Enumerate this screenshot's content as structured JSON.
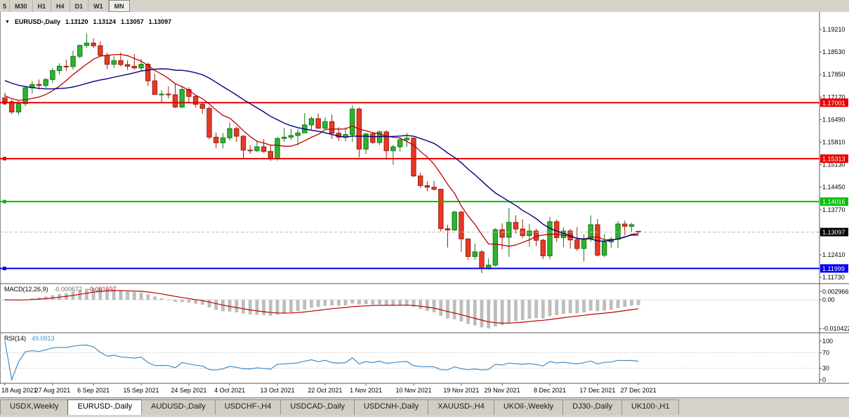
{
  "window": {
    "toolbar": {
      "timeframes": [
        {
          "label": "5",
          "active": false
        },
        {
          "label": "M30",
          "active": false
        },
        {
          "label": "H1",
          "active": false
        },
        {
          "label": "H4",
          "active": false
        },
        {
          "label": "D1",
          "active": false
        },
        {
          "label": "W1",
          "active": false
        },
        {
          "label": "MN",
          "active": true
        }
      ]
    },
    "chart_header": {
      "collapse_icon": "triangle-down-icon",
      "symbol": "EURUSD-,Daily",
      "open": "1.13120",
      "high": "1.13124",
      "low": "1.13057",
      "close": "1.13097"
    }
  },
  "indicators": {
    "macd": {
      "name": "MACD(12,26,9)",
      "main_value": "-0.000672",
      "signal_value": "-0.001597",
      "axis_labels": [
        {
          "text": "0.002966",
          "value": 0.002966
        },
        {
          "text": "0.00",
          "value": 0.0
        },
        {
          "text": "-0.010422",
          "value": -0.010422
        }
      ]
    },
    "rsi": {
      "name": "RSI(14)",
      "value": "49.0913",
      "axis_labels": [
        {
          "text": "100",
          "value": 100
        },
        {
          "text": "70",
          "value": 70
        },
        {
          "text": "30",
          "value": 30
        },
        {
          "text": "0",
          "value": 0
        }
      ]
    }
  },
  "tabs": [
    {
      "label": "USDX,Weekly",
      "active": false
    },
    {
      "label": "EURUSD-,Daily",
      "active": true
    },
    {
      "label": "AUDUSD-,Daily",
      "active": false
    },
    {
      "label": "USDCHF-,H4",
      "active": false
    },
    {
      "label": "USDCAD-,Daily",
      "active": false
    },
    {
      "label": "USDCNH-,Daily",
      "active": false
    },
    {
      "label": "XAUUSD-,H4",
      "active": false
    },
    {
      "label": "UKOil-,Weekly",
      "active": false
    },
    {
      "label": "DJ30-,Daily",
      "active": false
    },
    {
      "label": "UK100-,H1",
      "active": false
    }
  ],
  "colors": {
    "up": "#2eb32e",
    "up_dark": "#157815",
    "down": "#e63a26",
    "down_dark": "#9c1f0d",
    "ma_fast": "#c00000",
    "ma_slow": "#000080",
    "macd_hist": "#bdbdbd",
    "macd_signal": "#c00000",
    "rsi_line": "#3e8ec9",
    "separator": "#5a5a5a"
  },
  "chart_data": {
    "type": "candlestick",
    "symbol": "EURUSD",
    "timeframe": "Daily",
    "current_price": {
      "value": 1.13097,
      "label": "1.13097",
      "box_color": "#000000"
    },
    "y_axis": {
      "top_value": 1.1921,
      "step": 0.0068,
      "labels": [
        "1.19210",
        "1.18530",
        "1.17850",
        "1.17170",
        "1.16490",
        "1.15810",
        "1.15130",
        "1.14450",
        "1.13770",
        "1.13090",
        "1.12410",
        "1.11730"
      ]
    },
    "hlines": [
      {
        "value": 1.17001,
        "label": "1.17001",
        "color": "#e80000"
      },
      {
        "value": 1.15313,
        "label": "1.15313",
        "color": "#e80000"
      },
      {
        "value": 1.14016,
        "label": "1.14016",
        "color": "#00c000"
      },
      {
        "value": 1.11999,
        "label": "1.11999",
        "color": "#0000f0"
      }
    ],
    "overlays": [
      {
        "name": "ma-fast",
        "type": "sma",
        "period": 8,
        "color": "#c00000"
      },
      {
        "name": "ma-slow",
        "type": "sma",
        "period": 21,
        "color": "#000080"
      }
    ],
    "x_ticks": [
      {
        "i": 0,
        "label": "18 Aug 2021"
      },
      {
        "i": 7,
        "label": "27 Aug 2021"
      },
      {
        "i": 13,
        "label": "6 Sep 2021"
      },
      {
        "i": 20,
        "label": "15 Sep 2021"
      },
      {
        "i": 27,
        "label": "24 Sep 2021"
      },
      {
        "i": 33,
        "label": "4 Oct 2021"
      },
      {
        "i": 40,
        "label": "13 Oct 2021"
      },
      {
        "i": 47,
        "label": "22 Oct 2021"
      },
      {
        "i": 53,
        "label": "1 Nov 2021"
      },
      {
        "i": 60,
        "label": "10 Nov 2021"
      },
      {
        "i": 67,
        "label": "19 Nov 2021"
      },
      {
        "i": 73,
        "label": "29 Nov 2021"
      },
      {
        "i": 80,
        "label": "8 Dec 2021"
      },
      {
        "i": 87,
        "label": "17 Dec 2021"
      },
      {
        "i": 93,
        "label": "27 Dec 2021"
      }
    ],
    "candles": [
      [
        1.1715,
        1.173,
        1.1695,
        1.1703
      ],
      [
        1.1703,
        1.1709,
        1.1665,
        1.1672
      ],
      [
        1.1672,
        1.1705,
        1.1664,
        1.1697
      ],
      [
        1.1697,
        1.175,
        1.169,
        1.1745
      ],
      [
        1.1745,
        1.1765,
        1.1727,
        1.1755
      ],
      [
        1.1755,
        1.177,
        1.174,
        1.1752
      ],
      [
        1.1752,
        1.1775,
        1.1745,
        1.177
      ],
      [
        1.177,
        1.1805,
        1.176,
        1.1797
      ],
      [
        1.1797,
        1.1819,
        1.1785,
        1.181
      ],
      [
        1.181,
        1.183,
        1.1795,
        1.1809
      ],
      [
        1.1809,
        1.1857,
        1.18,
        1.184
      ],
      [
        1.184,
        1.1875,
        1.1833,
        1.1873
      ],
      [
        1.1873,
        1.1909,
        1.1865,
        1.188
      ],
      [
        1.188,
        1.1895,
        1.1865,
        1.1872
      ],
      [
        1.1872,
        1.1885,
        1.1838,
        1.1843
      ],
      [
        1.1843,
        1.1851,
        1.1802,
        1.1816
      ],
      [
        1.1816,
        1.184,
        1.1805,
        1.1827
      ],
      [
        1.1827,
        1.1852,
        1.181,
        1.1815
      ],
      [
        1.1815,
        1.1828,
        1.1799,
        1.181
      ],
      [
        1.181,
        1.1847,
        1.18,
        1.1805
      ],
      [
        1.1805,
        1.1832,
        1.1795,
        1.1816
      ],
      [
        1.1816,
        1.1821,
        1.175,
        1.1766
      ],
      [
        1.1766,
        1.1788,
        1.1724,
        1.1725
      ],
      [
        1.1725,
        1.1738,
        1.17,
        1.1726
      ],
      [
        1.1726,
        1.1749,
        1.1713,
        1.1724
      ],
      [
        1.1724,
        1.1756,
        1.1684,
        1.1687
      ],
      [
        1.1687,
        1.175,
        1.1683,
        1.174
      ],
      [
        1.174,
        1.1747,
        1.1701,
        1.1719
      ],
      [
        1.1719,
        1.1722,
        1.1685,
        1.1695
      ],
      [
        1.1695,
        1.17,
        1.1667,
        1.1683
      ],
      [
        1.1683,
        1.169,
        1.1589,
        1.1596
      ],
      [
        1.1596,
        1.161,
        1.1563,
        1.1579
      ],
      [
        1.1579,
        1.1608,
        1.1562,
        1.1594
      ],
      [
        1.1594,
        1.164,
        1.1586,
        1.1622
      ],
      [
        1.1622,
        1.1628,
        1.1581,
        1.1599
      ],
      [
        1.1599,
        1.1602,
        1.1529,
        1.1557
      ],
      [
        1.1557,
        1.1572,
        1.1546,
        1.1555
      ],
      [
        1.1555,
        1.1586,
        1.1551,
        1.1567
      ],
      [
        1.1567,
        1.159,
        1.1549,
        1.1553
      ],
      [
        1.1553,
        1.1572,
        1.1524,
        1.153
      ],
      [
        1.153,
        1.1597,
        1.1525,
        1.1592
      ],
      [
        1.1592,
        1.1624,
        1.1582,
        1.1596
      ],
      [
        1.1596,
        1.1621,
        1.1588,
        1.1601
      ],
      [
        1.1601,
        1.1621,
        1.1571,
        1.1609
      ],
      [
        1.1609,
        1.1669,
        1.1609,
        1.1633
      ],
      [
        1.1633,
        1.1658,
        1.1617,
        1.1652
      ],
      [
        1.1652,
        1.1667,
        1.1622,
        1.1623
      ],
      [
        1.1623,
        1.1656,
        1.162,
        1.1643
      ],
      [
        1.1643,
        1.1664,
        1.1591,
        1.1608
      ],
      [
        1.1608,
        1.1626,
        1.1585,
        1.1596
      ],
      [
        1.1596,
        1.1626,
        1.1584,
        1.1604
      ],
      [
        1.1604,
        1.1692,
        1.1582,
        1.1681
      ],
      [
        1.1681,
        1.1686,
        1.1535,
        1.156
      ],
      [
        1.156,
        1.1609,
        1.1545,
        1.1606
      ],
      [
        1.1606,
        1.1612,
        1.1575,
        1.158
      ],
      [
        1.158,
        1.1616,
        1.1572,
        1.1612
      ],
      [
        1.1612,
        1.1617,
        1.1527,
        1.1555
      ],
      [
        1.1555,
        1.1573,
        1.1513,
        1.1567
      ],
      [
        1.1567,
        1.1595,
        1.1552,
        1.1588
      ],
      [
        1.1588,
        1.1609,
        1.1567,
        1.1593
      ],
      [
        1.1593,
        1.1596,
        1.1476,
        1.1479
      ],
      [
        1.1479,
        1.1489,
        1.1443,
        1.145
      ],
      [
        1.145,
        1.1463,
        1.1433,
        1.1445
      ],
      [
        1.1445,
        1.1464,
        1.1435,
        1.1439
      ],
      [
        1.1439,
        1.144,
        1.1311,
        1.132
      ],
      [
        1.132,
        1.1332,
        1.1263,
        1.1316
      ],
      [
        1.1316,
        1.1374,
        1.1313,
        1.137
      ],
      [
        1.137,
        1.1374,
        1.125,
        1.1289
      ],
      [
        1.1289,
        1.1291,
        1.1226,
        1.1236
      ],
      [
        1.1236,
        1.1275,
        1.1226,
        1.125
      ],
      [
        1.125,
        1.1255,
        1.1186,
        1.12
      ],
      [
        1.12,
        1.123,
        1.1196,
        1.121
      ],
      [
        1.121,
        1.1322,
        1.1206,
        1.1317
      ],
      [
        1.1317,
        1.1336,
        1.1258,
        1.1294
      ],
      [
        1.1294,
        1.1383,
        1.1235,
        1.1339
      ],
      [
        1.1339,
        1.136,
        1.1305,
        1.1319
      ],
      [
        1.1319,
        1.1348,
        1.1291,
        1.1299
      ],
      [
        1.1299,
        1.1334,
        1.1266,
        1.1313
      ],
      [
        1.1313,
        1.132,
        1.1267,
        1.1285
      ],
      [
        1.1285,
        1.129,
        1.1228,
        1.1238
      ],
      [
        1.1238,
        1.1355,
        1.1228,
        1.1341
      ],
      [
        1.1341,
        1.1348,
        1.128,
        1.1293
      ],
      [
        1.1293,
        1.1324,
        1.1264,
        1.1313
      ],
      [
        1.1313,
        1.1319,
        1.126,
        1.1286
      ],
      [
        1.1286,
        1.1325,
        1.1253,
        1.126
      ],
      [
        1.126,
        1.1303,
        1.1221,
        1.129
      ],
      [
        1.129,
        1.136,
        1.128,
        1.1332
      ],
      [
        1.1332,
        1.1349,
        1.1236,
        1.124
      ],
      [
        1.124,
        1.1304,
        1.1234,
        1.128
      ],
      [
        1.128,
        1.1295,
        1.1262,
        1.1288
      ],
      [
        1.1288,
        1.1343,
        1.1262,
        1.1334
      ],
      [
        1.1334,
        1.1344,
        1.13,
        1.1327
      ],
      [
        1.1327,
        1.1338,
        1.1309,
        1.1332
      ],
      [
        1.1312,
        1.13124,
        1.13057,
        1.13097
      ]
    ]
  }
}
